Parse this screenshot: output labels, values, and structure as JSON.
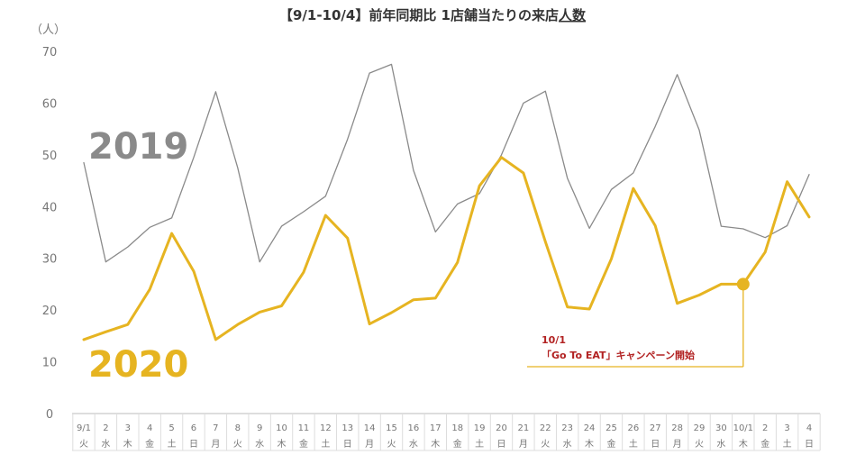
{
  "chart_data": {
    "type": "line",
    "title_prefix": "【9/1-10/4】前年同期比 1店舗当たりの来店",
    "title_emphasis": "人数",
    "unit_label": "（人）",
    "ylim": [
      0,
      70
    ],
    "yticks": [
      0,
      10,
      20,
      30,
      40,
      50,
      60,
      70
    ],
    "grid": false,
    "categories": [
      "9/1",
      "2",
      "3",
      "4",
      "5",
      "6",
      "7",
      "8",
      "9",
      "10",
      "11",
      "12",
      "13",
      "14",
      "15",
      "16",
      "17",
      "18",
      "19",
      "20",
      "21",
      "22",
      "23",
      "24",
      "25",
      "26",
      "27",
      "28",
      "29",
      "30",
      "10/1",
      "2",
      "3",
      "4"
    ],
    "weekdays": [
      "火",
      "水",
      "木",
      "金",
      "土",
      "日",
      "月",
      "火",
      "水",
      "木",
      "金",
      "土",
      "日",
      "月",
      "火",
      "水",
      "木",
      "金",
      "土",
      "日",
      "月",
      "火",
      "水",
      "木",
      "金",
      "土",
      "日",
      "月",
      "火",
      "水",
      "木",
      "金",
      "土",
      "日"
    ],
    "series": [
      {
        "name": "2019",
        "color": "#8a8a8a",
        "values": [
          48.5,
          29.3,
          32.2,
          36.0,
          37.8,
          49.5,
          62.2,
          47.5,
          29.3,
          36.2,
          39.0,
          42.0,
          53.0,
          65.8,
          67.5,
          47.0,
          35.1,
          40.5,
          42.5,
          50.0,
          60.0,
          62.3,
          45.5,
          35.8,
          43.3,
          46.5,
          55.5,
          65.5,
          54.8,
          36.2,
          35.7,
          34.0,
          36.3,
          46.2
        ]
      },
      {
        "name": "2020",
        "color": "#e6b421",
        "values": [
          14.3,
          15.8,
          17.2,
          24.0,
          34.8,
          27.5,
          14.3,
          17.2,
          19.6,
          20.8,
          27.3,
          38.3,
          33.9,
          17.3,
          19.5,
          22.0,
          22.3,
          29.2,
          44.0,
          49.5,
          46.5,
          33.2,
          20.6,
          20.2,
          29.9,
          43.5,
          36.3,
          21.3,
          22.9,
          25.0,
          25.0,
          31.2,
          44.8,
          38.0
        ]
      }
    ],
    "annotation": {
      "category": "10/1",
      "series": "2020",
      "value": 25.0,
      "line1": "10/1",
      "line2": "「Go To EAT」キャンペーン開始",
      "text_color": "#b22222",
      "marker_color": "#e6b421"
    },
    "axis_color": "#bbbbbb"
  }
}
